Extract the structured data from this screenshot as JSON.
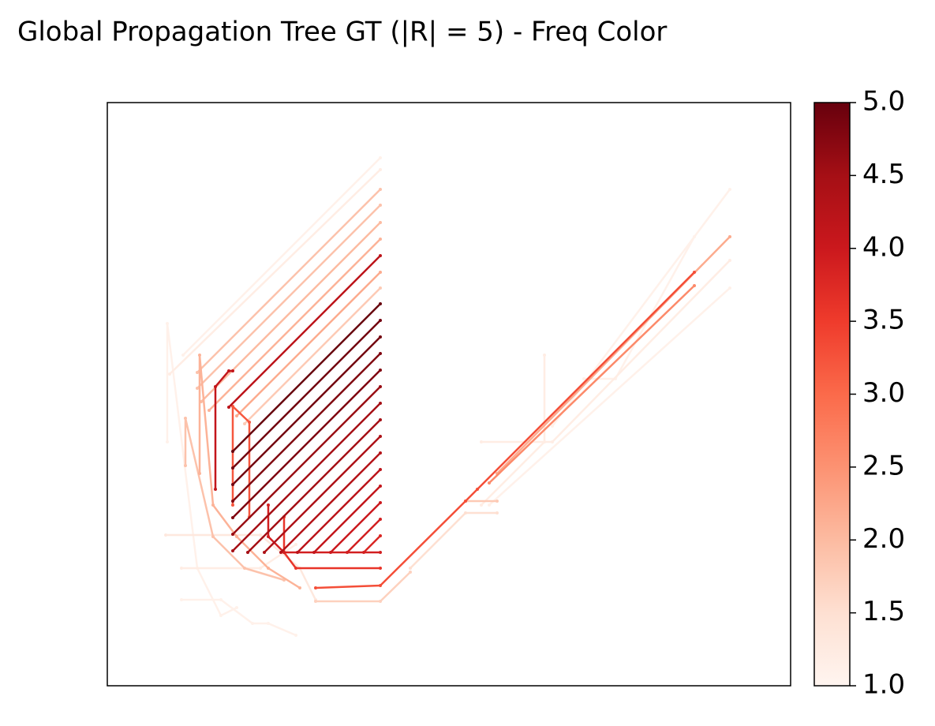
{
  "chart_data": {
    "type": "graph",
    "title": "Global Propagation Tree GT (|R| =  5) - Freq Color",
    "xlim": [
      136,
      1002
    ],
    "ylim": [
      869,
      130
    ],
    "colormap": [
      "#fff5f0",
      "#fee0d2",
      "#fcbba1",
      "#fc9272",
      "#fb6a4a",
      "#ef3b2c",
      "#cb181d",
      "#a50f15",
      "#67000d"
    ],
    "clim": [
      1,
      5
    ],
    "cticks": [
      {
        "value": 1,
        "label": "1.0"
      },
      {
        "value": 1.5,
        "label": "1.5"
      },
      {
        "value": 2,
        "label": "2.0"
      },
      {
        "value": 2.5,
        "label": "2.5"
      },
      {
        "value": 3,
        "label": "3.0"
      },
      {
        "value": 3.5,
        "label": "3.5"
      },
      {
        "value": 4,
        "label": "4.0"
      },
      {
        "value": 4.5,
        "label": "4.5"
      },
      {
        "value": 5,
        "label": "5.0"
      }
    ],
    "edges": [
      {
        "x": [
          232,
          482
        ],
        "y": [
          450,
          200
        ],
        "freq": 1.1
      },
      {
        "x": [
          215,
          482
        ],
        "y": [
          474,
          215
        ],
        "freq": 1.2
      },
      {
        "x": [
          250,
          482
        ],
        "y": [
          472,
          240
        ],
        "freq": 1.9
      },
      {
        "x": [
          250,
          482
        ],
        "y": [
          492,
          260
        ],
        "freq": 1.9
      },
      {
        "x": [
          255,
          482
        ],
        "y": [
          509,
          282
        ],
        "freq": 2.0
      },
      {
        "x": [
          265,
          482
        ],
        "y": [
          520,
          303
        ],
        "freq": 2.1
      },
      {
        "x": [
          290,
          482
        ],
        "y": [
          516,
          324
        ],
        "freq": 4.2
      },
      {
        "x": [
          300,
          482
        ],
        "y": [
          527,
          345
        ],
        "freq": 2.2
      },
      {
        "x": [
          310,
          482
        ],
        "y": [
          537,
          365
        ],
        "freq": 1.8
      },
      {
        "x": [
          295,
          482
        ],
        "y": [
          572,
          385
        ],
        "freq": 5.0
      },
      {
        "x": [
          295,
          482
        ],
        "y": [
          593,
          406
        ],
        "freq": 4.9
      },
      {
        "x": [
          295,
          482
        ],
        "y": [
          614,
          427
        ],
        "freq": 4.9
      },
      {
        "x": [
          295,
          482
        ],
        "y": [
          635,
          448
        ],
        "freq": 4.8
      },
      {
        "x": [
          295,
          482
        ],
        "y": [
          656,
          469
        ],
        "freq": 4.8
      },
      {
        "x": [
          295,
          482
        ],
        "y": [
          677,
          490
        ],
        "freq": 4.6
      },
      {
        "x": [
          295,
          482
        ],
        "y": [
          698,
          511
        ],
        "freq": 4.5
      },
      {
        "x": [
          314,
          482
        ],
        "y": [
          700,
          532
        ],
        "freq": 4.5
      },
      {
        "x": [
          335,
          482
        ],
        "y": [
          700,
          553
        ],
        "freq": 4.4
      },
      {
        "x": [
          356,
          482
        ],
        "y": [
          700,
          574
        ],
        "freq": 4.3
      },
      {
        "x": [
          377,
          482
        ],
        "y": [
          700,
          595
        ],
        "freq": 4.2
      },
      {
        "x": [
          398,
          482
        ],
        "y": [
          700,
          616
        ],
        "freq": 4.1
      },
      {
        "x": [
          419,
          482
        ],
        "y": [
          700,
          637
        ],
        "freq": 4.0
      },
      {
        "x": [
          440,
          482
        ],
        "y": [
          700,
          658
        ],
        "freq": 3.9
      },
      {
        "x": [
          461,
          482
        ],
        "y": [
          700,
          679
        ],
        "freq": 3.8
      },
      {
        "x": [
          273,
          273,
          290,
          295
        ],
        "y": [
          620,
          490,
          470,
          470
        ],
        "freq": 4.1
      },
      {
        "x": [
          295,
          295,
          316,
          316
        ],
        "y": [
          640,
          515,
          535,
          655
        ],
        "freq": 3.2
      },
      {
        "x": [
          253,
          253,
          270,
          300,
          340,
          380
        ],
        "y": [
          600,
          450,
          640,
          680,
          720,
          745
        ],
        "freq": 2.1
      },
      {
        "x": [
          235,
          235,
          270,
          310,
          360
        ],
        "y": [
          590,
          530,
          680,
          720,
          735
        ],
        "freq": 1.9
      },
      {
        "x": [
          212,
          212,
          250,
          280,
          300
        ],
        "y": [
          560,
          410,
          720,
          780,
          770
        ],
        "freq": 1.1
      },
      {
        "x": [
          210,
          330,
          380,
          400
        ],
        "y": [
          678,
          678,
          720,
          760
        ],
        "freq": 1.3
      },
      {
        "x": [
          230,
          330,
          375
        ],
        "y": [
          720,
          720,
          690
        ],
        "freq": 1.2
      },
      {
        "x": [
          230,
          280,
          320,
          340,
          375
        ],
        "y": [
          760,
          760,
          790,
          790,
          805
        ],
        "freq": 1.1
      },
      {
        "x": [
          360,
          360,
          375,
          482
        ],
        "y": [
          655,
          700,
          720,
          720
        ],
        "freq": 3.6
      },
      {
        "x": [
          340,
          340,
          360,
          482
        ],
        "y": [
          640,
          680,
          700,
          700
        ],
        "freq": 3.9
      },
      {
        "x": [
          400,
          482,
          590,
          605,
          880
        ],
        "y": [
          745,
          742,
          635,
          620,
          345
        ],
        "freq": 3.3
      },
      {
        "x": [
          400,
          482,
          520
        ],
        "y": [
          762,
          762,
          725
        ],
        "freq": 1.7
      },
      {
        "x": [
          590,
          630
        ],
        "y": [
          635,
          635
        ],
        "freq": 1.8
      },
      {
        "x": [
          620,
          880
        ],
        "y": [
          612,
          362
        ],
        "freq": 2.6
      },
      {
        "x": [
          630,
          925
        ],
        "y": [
          600,
          300
        ],
        "freq": 2.2
      },
      {
        "x": [
          610,
          700,
          925
        ],
        "y": [
          560,
          560,
          330
        ],
        "freq": 1.2
      },
      {
        "x": [
          700,
          925
        ],
        "y": [
          540,
          240
        ],
        "freq": 1.1
      },
      {
        "x": [
          620,
          925
        ],
        "y": [
          640,
          365
        ],
        "freq": 1.1
      },
      {
        "x": [
          610,
          690,
          690
        ],
        "y": [
          640,
          560,
          450
        ],
        "freq": 1.2
      },
      {
        "x": [
          740,
          780,
          880
        ],
        "y": [
          480,
          480,
          300
        ],
        "freq": 1.1
      },
      {
        "x": [
          520,
          590,
          630
        ],
        "y": [
          720,
          650,
          650
        ],
        "freq": 1.5
      }
    ]
  }
}
